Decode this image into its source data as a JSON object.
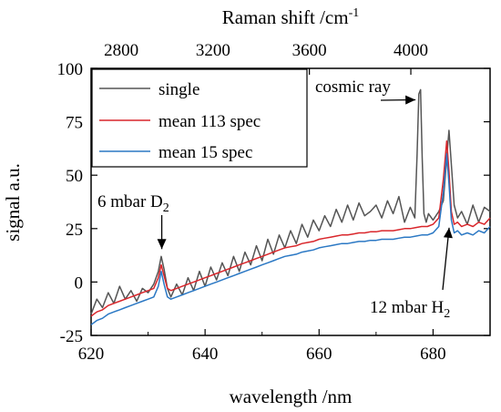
{
  "chart_data": {
    "type": "line",
    "title": "",
    "xlabel": "wavelength /nm",
    "ylabel": "signal a.u.",
    "x2label": "Raman shift /cm",
    "x2label_superscript": "-1",
    "xlim": [
      620,
      690
    ],
    "ylim": [
      -25,
      100
    ],
    "x_ticks": [
      620,
      640,
      660,
      680
    ],
    "y_ticks": [
      -25,
      0,
      25,
      50,
      75,
      100
    ],
    "x2_ticks": [
      2800,
      3200,
      3600,
      4000
    ],
    "x2_tick_wavelengths": [
      625.3,
      641.4,
      658.3,
      676.1
    ],
    "excitation_wavelength_nm": 532,
    "grid": false,
    "legend_position": "top-left",
    "series": [
      {
        "name": "single",
        "color": "#555555",
        "x": [
          620,
          621,
          622,
          623,
          624,
          625,
          626,
          627,
          628,
          629,
          630,
          631,
          631.8,
          632.3,
          632.8,
          633.4,
          634,
          635,
          636,
          637,
          638,
          639,
          640,
          641,
          642,
          643,
          644,
          645,
          646,
          647,
          648,
          649,
          650,
          651,
          652,
          653,
          654,
          655,
          656,
          657,
          658,
          659,
          660,
          661,
          662,
          663,
          664,
          665,
          666,
          667,
          668,
          669,
          670,
          671,
          672,
          673,
          674,
          675,
          676,
          676.8,
          677.2,
          677.5,
          677.8,
          678.1,
          678.4,
          678.8,
          679.2,
          680,
          681,
          681.8,
          682.4,
          682.8,
          683.2,
          683.7,
          684.3,
          685,
          686,
          687,
          688,
          689,
          690
        ],
        "y": [
          -15,
          -8,
          -12,
          -5,
          -10,
          -2,
          -8,
          -4,
          -9,
          -3,
          -5,
          -1,
          5,
          12,
          6,
          -3,
          -7,
          -1,
          -6,
          2,
          -4,
          5,
          -2,
          7,
          1,
          9,
          3,
          12,
          5,
          14,
          8,
          17,
          10,
          20,
          13,
          22,
          16,
          24,
          18,
          27,
          21,
          29,
          24,
          31,
          26,
          34,
          28,
          36,
          29,
          37,
          31,
          33,
          36,
          30,
          38,
          32,
          40,
          28,
          35,
          30,
          60,
          88,
          90,
          58,
          32,
          28,
          32,
          29,
          33,
          38,
          58,
          71,
          55,
          36,
          30,
          33,
          27,
          36,
          28,
          35,
          33
        ]
      },
      {
        "name": "mean 113 spec",
        "color": "#d9262b",
        "x": [
          620,
          621,
          622,
          623,
          624,
          625,
          626,
          627,
          628,
          629,
          630,
          631,
          631.8,
          632.3,
          632.8,
          633.4,
          634,
          635,
          636,
          637,
          638,
          639,
          640,
          641,
          642,
          643,
          644,
          645,
          646,
          647,
          648,
          649,
          650,
          651,
          652,
          653,
          654,
          655,
          656,
          657,
          658,
          659,
          660,
          661,
          662,
          663,
          664,
          665,
          666,
          667,
          668,
          669,
          670,
          671,
          672,
          673,
          674,
          675,
          676,
          677,
          678,
          679,
          680,
          681,
          681.8,
          682.4,
          682.8,
          683.2,
          683.7,
          684.3,
          685,
          686,
          687,
          688,
          689,
          690
        ],
        "y": [
          -16,
          -14,
          -13,
          -11,
          -10,
          -9,
          -8,
          -7,
          -6,
          -5,
          -4,
          -3,
          2,
          8,
          3,
          -3,
          -4,
          -3,
          -2,
          -1,
          0,
          1,
          2,
          3,
          4,
          5,
          6,
          7,
          8,
          9,
          10,
          11,
          12,
          13,
          14,
          15,
          16,
          16.5,
          17,
          18,
          18.5,
          19,
          20,
          20.5,
          21,
          21.5,
          22,
          22,
          22.5,
          23,
          23,
          23.5,
          23.5,
          24,
          24,
          24,
          24.5,
          25,
          25,
          25.5,
          26,
          26,
          27,
          30,
          48,
          66,
          52,
          33,
          27,
          28,
          26,
          27,
          26,
          28,
          27,
          30
        ]
      },
      {
        "name": "mean 15 spec",
        "color": "#2b78c4",
        "x": [
          620,
          621,
          622,
          623,
          624,
          625,
          626,
          627,
          628,
          629,
          630,
          631,
          631.8,
          632.3,
          632.8,
          633.4,
          634,
          635,
          636,
          637,
          638,
          639,
          640,
          641,
          642,
          643,
          644,
          645,
          646,
          647,
          648,
          649,
          650,
          651,
          652,
          653,
          654,
          655,
          656,
          657,
          658,
          659,
          660,
          661,
          662,
          663,
          664,
          665,
          666,
          667,
          668,
          669,
          670,
          671,
          672,
          673,
          674,
          675,
          676,
          677,
          678,
          679,
          680,
          681,
          681.8,
          682.4,
          682.8,
          683.2,
          683.7,
          684.3,
          685,
          686,
          687,
          688,
          689,
          690
        ],
        "y": [
          -20,
          -18,
          -17,
          -15,
          -14,
          -13,
          -12,
          -11,
          -10,
          -9,
          -8,
          -7,
          -2,
          5,
          -1,
          -7,
          -8,
          -7,
          -6,
          -5,
          -4,
          -3,
          -2,
          -1,
          0,
          1,
          2,
          3,
          4,
          5,
          6,
          7,
          8,
          9,
          10,
          11,
          12,
          12.5,
          13,
          14,
          14.5,
          15,
          16,
          16.5,
          17,
          17.5,
          18,
          18,
          18.5,
          19,
          19,
          19.5,
          19.5,
          20,
          20,
          20,
          20.5,
          21,
          21,
          21.5,
          22,
          22,
          23,
          26,
          42,
          60,
          46,
          29,
          23,
          24,
          22,
          23,
          22,
          24,
          23,
          26
        ]
      }
    ],
    "annotations": [
      {
        "text": "cosmic ray",
        "x": 677.4,
        "y": 87
      },
      {
        "text": "6 mbar D",
        "subscript": "2",
        "x": 632.4,
        "y": 12
      },
      {
        "text": "12 mbar H",
        "subscript": "2",
        "x": 682.5,
        "y": 22
      }
    ]
  }
}
